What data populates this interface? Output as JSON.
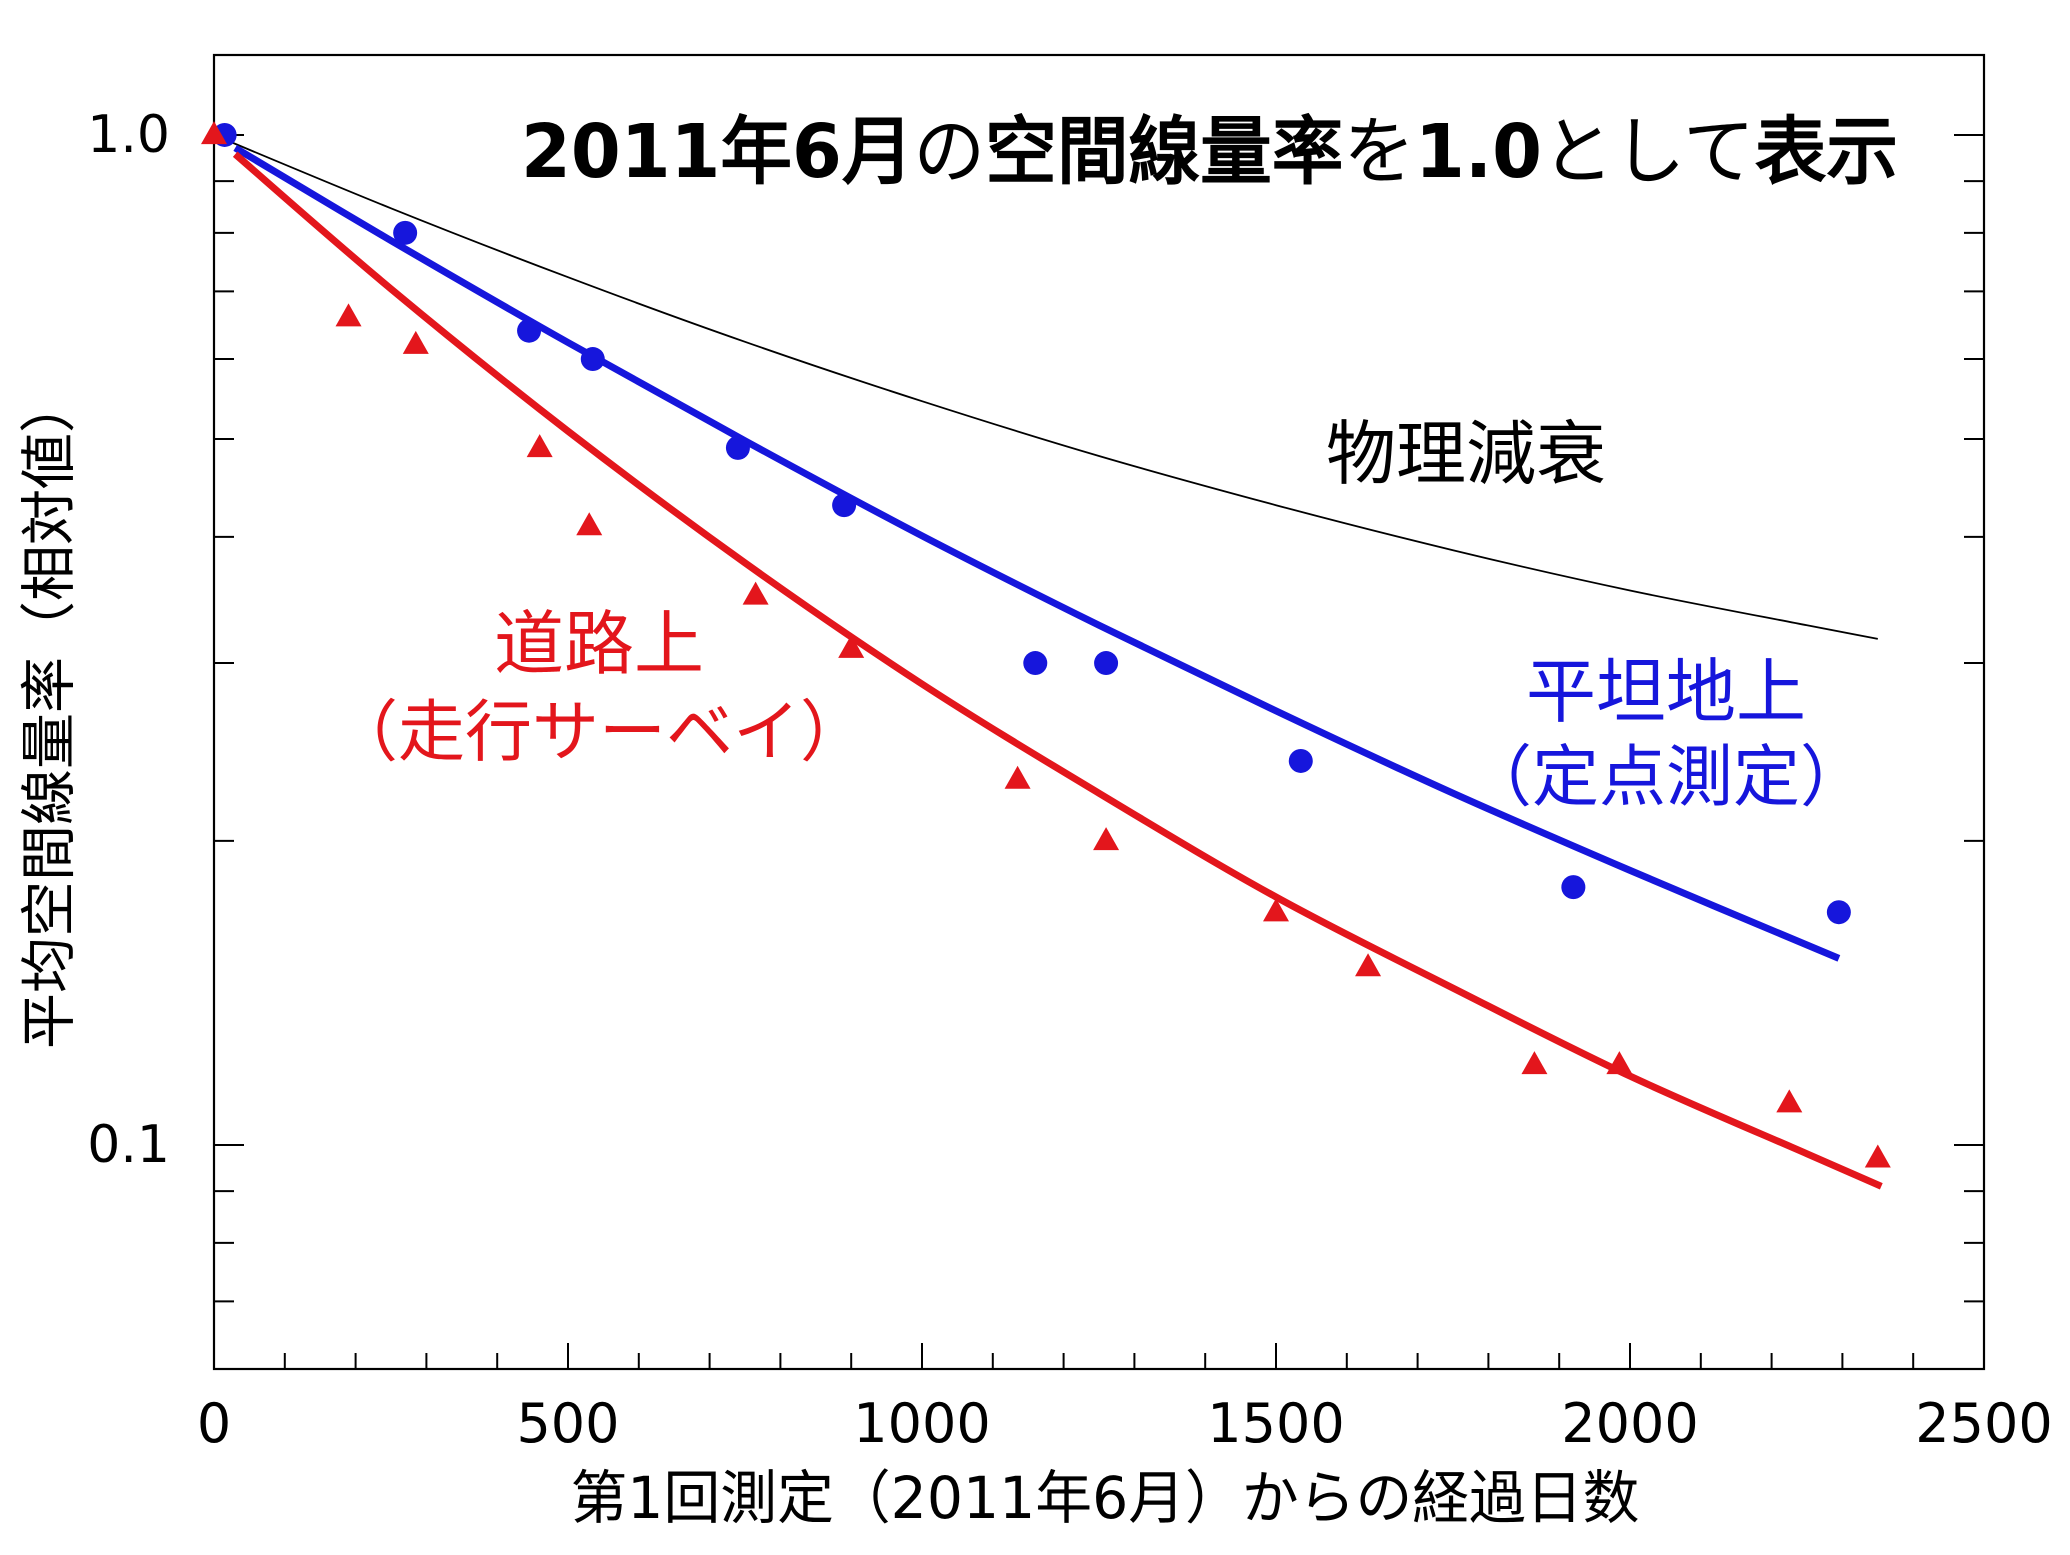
{
  "chart_data": {
    "type": "scatter",
    "title_parts": [
      {
        "text": "2011年6月",
        "bold": true
      },
      {
        "text": "の",
        "bold": false
      },
      {
        "text": "空間線量率",
        "bold": true
      },
      {
        "text": "を",
        "bold": false
      },
      {
        "text": "1.0",
        "bold": true
      },
      {
        "text": "として",
        "bold": false
      },
      {
        "text": "表示",
        "bold": true
      }
    ],
    "xlabel": "第1回測定（2011年6月）からの経過日数",
    "ylabel": "平均空間線量率（相対値）",
    "xlim": [
      0,
      2500
    ],
    "ylim": [
      0.06,
      1.2
    ],
    "yscale": "log",
    "x_ticks": [
      0,
      500,
      1000,
      1500,
      2000,
      2500
    ],
    "x_tick_labels": [
      "0",
      "500",
      "1000",
      "1500",
      "2000",
      "2500"
    ],
    "y_ticks": [
      1.0,
      0.1
    ],
    "y_tick_labels": [
      "1.0",
      "0.1"
    ],
    "grid": false,
    "series": [
      {
        "label": [
          "道路上",
          "（走行サーベイ）"
        ],
        "color": "#e3161c",
        "marker": "triangle",
        "x": [
          0,
          190,
          285,
          460,
          530,
          765,
          900,
          1135,
          1260,
          1500,
          1630,
          1865,
          1985,
          2225,
          2350
        ],
        "y": [
          1.0,
          0.66,
          0.62,
          0.49,
          0.41,
          0.35,
          0.31,
          0.23,
          0.2,
          0.17,
          0.15,
          0.12,
          0.12,
          0.11,
          0.097
        ],
        "fit": {
          "x": [
            30,
            250,
            500,
            750,
            1000,
            1250,
            1500,
            1750,
            2000,
            2250,
            2355
          ],
          "y": [
            0.957,
            0.704,
            0.509,
            0.377,
            0.286,
            0.223,
            0.176,
            0.143,
            0.117,
            0.098,
            0.091
          ]
        }
      },
      {
        "label": [
          "平坦地上",
          "（定点測定）"
        ],
        "color": "#1616dc",
        "marker": "circle",
        "x": [
          15,
          270,
          445,
          535,
          740,
          890,
          1160,
          1260,
          1535,
          1920,
          2295
        ],
        "y": [
          1.0,
          0.8,
          0.64,
          0.6,
          0.49,
          0.43,
          0.3,
          0.3,
          0.24,
          0.18,
          0.17
        ],
        "fit": {
          "x": [
            30,
            250,
            500,
            750,
            1000,
            1250,
            1500,
            1750,
            2000,
            2295
          ],
          "y": [
            0.971,
            0.786,
            0.623,
            0.498,
            0.401,
            0.327,
            0.269,
            0.223,
            0.187,
            0.153
          ]
        }
      },
      {
        "label": [
          "物理減衰"
        ],
        "color": "#000000",
        "marker": "none",
        "line": {
          "x": [
            0,
            250,
            500,
            750,
            1000,
            1250,
            1500,
            1750,
            2000,
            2250,
            2350
          ],
          "y": [
            1.0,
            0.846,
            0.723,
            0.624,
            0.545,
            0.481,
            0.43,
            0.388,
            0.354,
            0.327,
            0.317
          ]
        }
      }
    ]
  }
}
